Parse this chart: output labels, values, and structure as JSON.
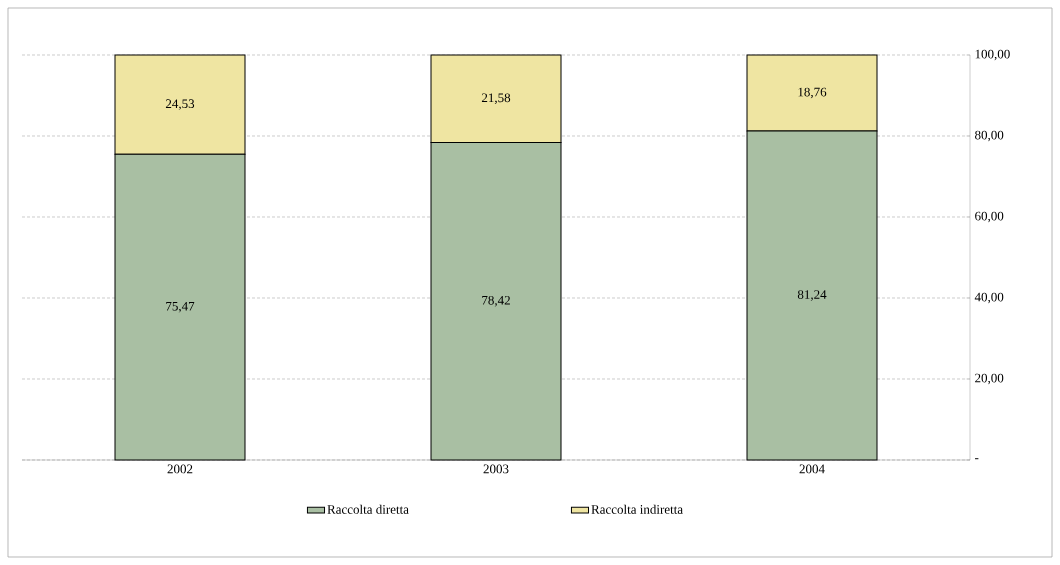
{
  "chart_data": {
    "type": "bar",
    "stacked": true,
    "categories": [
      "2002",
      "2003",
      "2004"
    ],
    "series": [
      {
        "name": "Raccolta diretta",
        "color": "#a9bfa3",
        "values": [
          75.47,
          78.42,
          81.24
        ],
        "value_labels": [
          "75,47",
          "78,42",
          "81,24"
        ]
      },
      {
        "name": "Raccolta indiretta",
        "color": "#efe5a2",
        "values": [
          24.53,
          21.58,
          18.76
        ],
        "value_labels": [
          "24,53",
          "21,58",
          "18,76"
        ]
      }
    ],
    "ylim": [
      0,
      100
    ],
    "yticks": [
      {
        "value": 0,
        "label": "-"
      },
      {
        "value": 20,
        "label": "20,00"
      },
      {
        "value": 40,
        "label": "40,00"
      },
      {
        "value": 60,
        "label": "60,00"
      },
      {
        "value": 80,
        "label": "80,00"
      },
      {
        "value": 100,
        "label": "100,00"
      }
    ],
    "grid": "y",
    "legend": "bottom"
  }
}
